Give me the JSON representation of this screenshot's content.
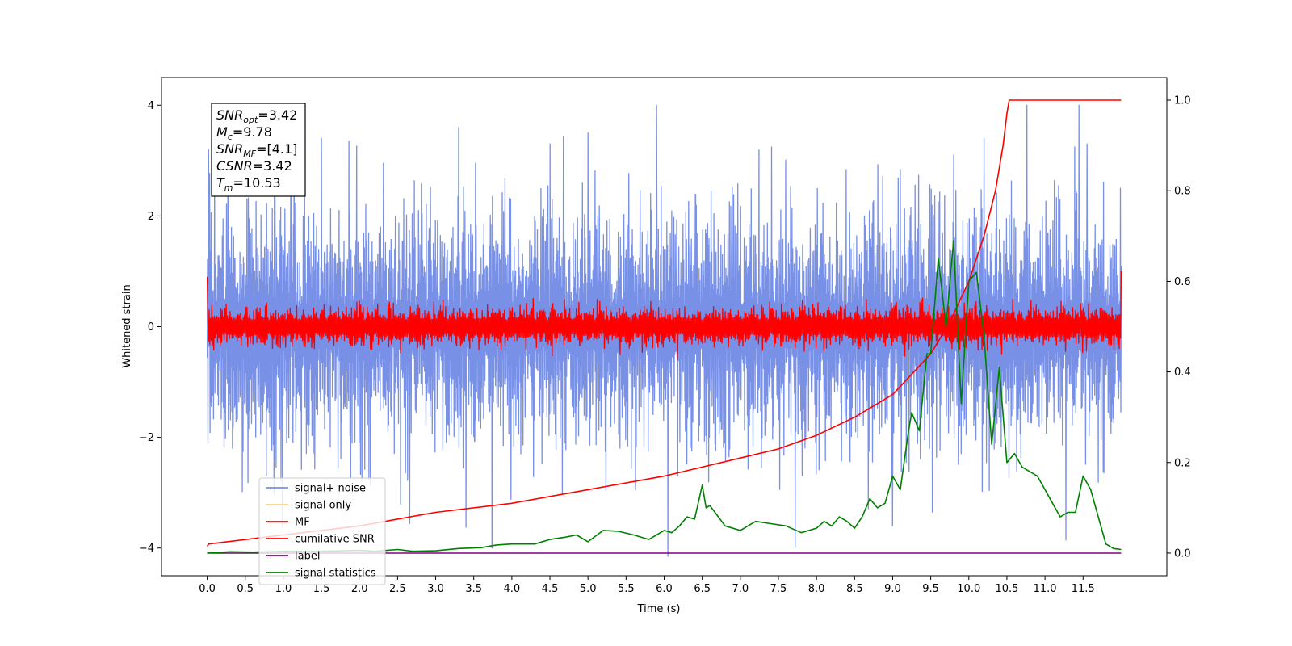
{
  "chart_data": {
    "type": "line",
    "xlabel": "Time (s)",
    "ylabel": "Whitened strain",
    "xlim": [
      -0.6,
      12.6
    ],
    "ylim": [
      -4.5,
      4.5
    ],
    "y2lim": [
      -0.05,
      1.05
    ],
    "xticks": [
      0.0,
      0.5,
      1.0,
      1.5,
      2.0,
      2.5,
      3.0,
      3.5,
      4.0,
      4.5,
      5.0,
      5.5,
      6.0,
      6.5,
      7.0,
      7.5,
      8.0,
      8.5,
      9.0,
      9.5,
      10.0,
      10.5,
      11.0,
      11.5
    ],
    "xtick_labels": [
      "0.0",
      "0.5",
      "1.0",
      "1.5",
      "2.0",
      "2.5",
      "3.0",
      "3.5",
      "4.0",
      "4.5",
      "5.0",
      "5.5",
      "6.0",
      "6.5",
      "7.0",
      "7.5",
      "8.0",
      "8.5",
      "9.0",
      "9.5",
      "10.0",
      "10.5",
      "11.0",
      "11.5"
    ],
    "yticks": [
      -4,
      -2,
      0,
      2,
      4
    ],
    "ytick_labels": [
      "−4",
      "−2",
      "0",
      "2",
      "4"
    ],
    "y2ticks": [
      0.0,
      0.2,
      0.4,
      0.6,
      0.8,
      1.0
    ],
    "y2tick_labels": [
      "0.0",
      "0.2",
      "0.4",
      "0.6",
      "0.8",
      "1.0"
    ],
    "legend_position": "lower-left",
    "grid": false,
    "annotation": {
      "lines": [
        {
          "main": "SNR",
          "sub": "opt",
          "rest": "=3.42"
        },
        {
          "main": "M",
          "sub": "c",
          "rest": "=9.78"
        },
        {
          "main": "SNR",
          "sub": "MF",
          "rest": "=[4.1]"
        },
        {
          "main": "CSNR",
          "sub": "",
          "rest": "=3.42"
        },
        {
          "main": "T",
          "sub": "m",
          "rest": "=10.53"
        }
      ]
    },
    "series": [
      {
        "name": "signal+ noise",
        "color": "#7890e6",
        "axis": "left",
        "style": "noise",
        "t_range": [
          0.0,
          12.0
        ],
        "amplitude_typical": 1.3,
        "amplitude_max": 4.0,
        "spikes": [
          [
            0.02,
            3.2
          ],
          [
            1.1,
            3.3
          ],
          [
            1.5,
            3.4
          ],
          [
            3.3,
            3.6
          ],
          [
            4.5,
            3.3
          ],
          [
            5.0,
            3.5
          ],
          [
            5.9,
            4.0
          ],
          [
            6.05,
            -4.15
          ],
          [
            9.0,
            -3.6
          ],
          [
            9.8,
            3.1
          ],
          [
            10.2,
            3.4
          ],
          [
            11.55,
            3.3
          ]
        ]
      },
      {
        "name": "signal only",
        "color": "#ffd07a",
        "axis": "left",
        "style": "chirp",
        "t_range": [
          0.0,
          10.53
        ],
        "amplitude_max": 0.4
      },
      {
        "name": "MF",
        "color": "#ff0000",
        "axis": "left",
        "style": "noise",
        "t_range": [
          0.0,
          12.0
        ],
        "amplitude_typical": 0.25,
        "amplitude_max": 1.0
      },
      {
        "name": "cumilative SNR",
        "color": "#ff0000",
        "axis": "right",
        "style": "line",
        "x": [
          0.0,
          0.02,
          1.0,
          2.0,
          3.0,
          4.0,
          5.0,
          6.0,
          7.0,
          7.5,
          8.0,
          8.5,
          9.0,
          9.5,
          9.75,
          10.0,
          10.2,
          10.35,
          10.45,
          10.5,
          10.53,
          11.0,
          11.5,
          12.0
        ],
        "y": [
          0.015,
          0.02,
          0.04,
          0.06,
          0.09,
          0.11,
          0.14,
          0.17,
          0.21,
          0.23,
          0.26,
          0.3,
          0.35,
          0.44,
          0.51,
          0.6,
          0.7,
          0.8,
          0.9,
          0.97,
          1.0,
          1.0,
          1.0,
          1.0
        ]
      },
      {
        "name": "label",
        "color": "#800080",
        "axis": "right",
        "style": "line",
        "x": [
          0.0,
          12.0
        ],
        "y": [
          0.0,
          0.0
        ]
      },
      {
        "name": "signal statistics",
        "color": "#008000",
        "axis": "right",
        "style": "line",
        "x": [
          0.0,
          0.3,
          0.6,
          1.0,
          1.5,
          2.0,
          2.2,
          2.5,
          2.7,
          3.0,
          3.3,
          3.6,
          3.8,
          4.0,
          4.3,
          4.5,
          4.7,
          4.85,
          5.0,
          5.2,
          5.4,
          5.6,
          5.8,
          6.0,
          6.1,
          6.2,
          6.3,
          6.4,
          6.5,
          6.55,
          6.6,
          6.8,
          7.0,
          7.2,
          7.4,
          7.6,
          7.8,
          8.0,
          8.1,
          8.2,
          8.3,
          8.4,
          8.5,
          8.6,
          8.7,
          8.8,
          8.9,
          9.0,
          9.1,
          9.2,
          9.25,
          9.35,
          9.45,
          9.5,
          9.6,
          9.7,
          9.8,
          9.9,
          10.0,
          10.1,
          10.2,
          10.3,
          10.4,
          10.5,
          10.6,
          10.7,
          10.8,
          10.9,
          11.0,
          11.1,
          11.2,
          11.3,
          11.4,
          11.5,
          11.6,
          11.7,
          11.8,
          11.9,
          12.0
        ],
        "y": [
          0.0,
          0.003,
          0.002,
          0.004,
          0.004,
          0.006,
          0.004,
          0.008,
          0.004,
          0.005,
          0.01,
          0.012,
          0.018,
          0.02,
          0.02,
          0.03,
          0.035,
          0.04,
          0.025,
          0.05,
          0.048,
          0.04,
          0.03,
          0.05,
          0.045,
          0.06,
          0.08,
          0.075,
          0.15,
          0.1,
          0.105,
          0.06,
          0.05,
          0.07,
          0.065,
          0.06,
          0.045,
          0.055,
          0.07,
          0.06,
          0.08,
          0.07,
          0.055,
          0.08,
          0.12,
          0.1,
          0.11,
          0.17,
          0.14,
          0.26,
          0.31,
          0.27,
          0.44,
          0.44,
          0.65,
          0.5,
          0.69,
          0.33,
          0.6,
          0.62,
          0.48,
          0.24,
          0.41,
          0.2,
          0.22,
          0.19,
          0.18,
          0.17,
          0.14,
          0.11,
          0.08,
          0.09,
          0.09,
          0.17,
          0.14,
          0.08,
          0.02,
          0.01,
          0.008
        ]
      }
    ]
  }
}
